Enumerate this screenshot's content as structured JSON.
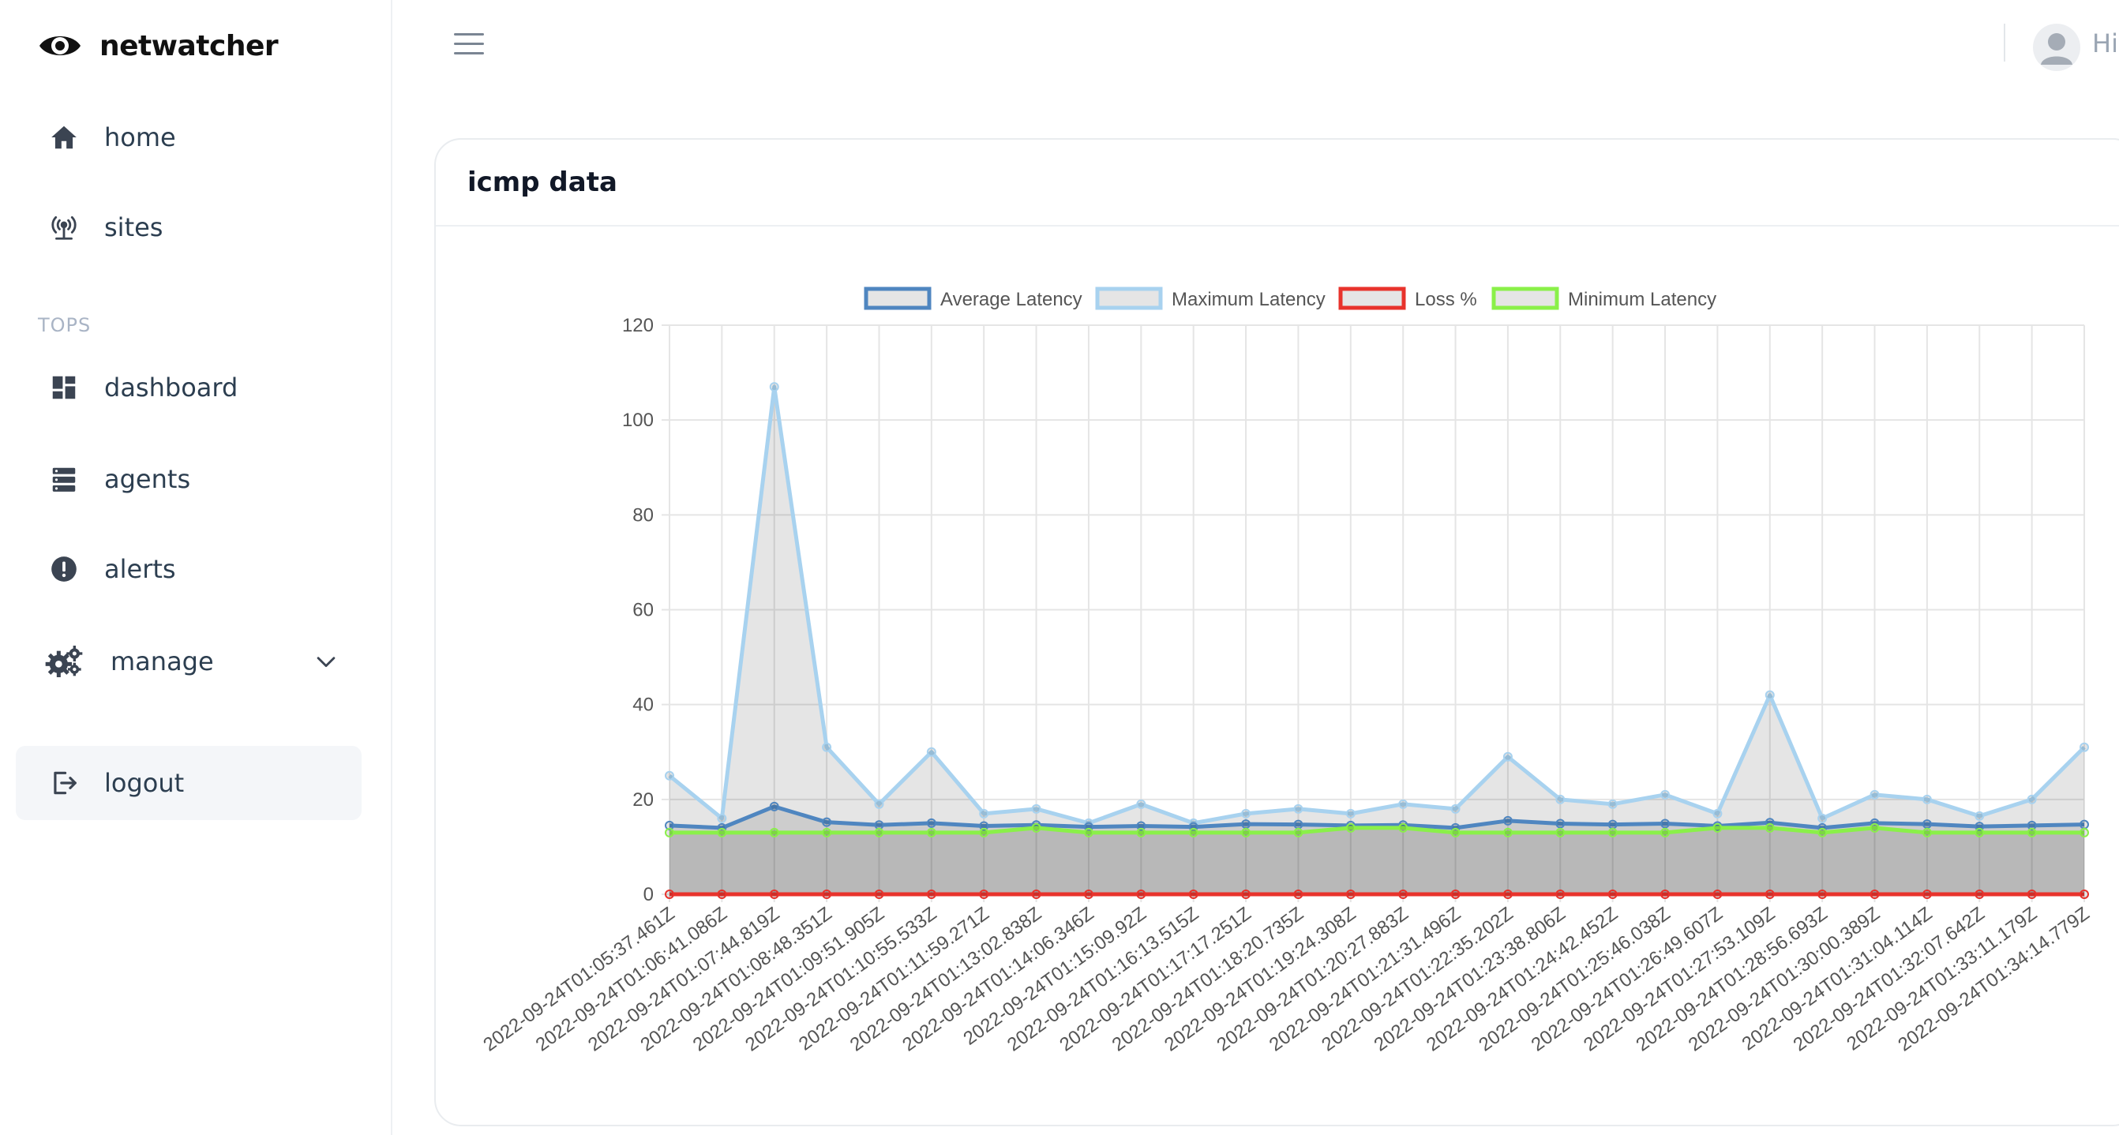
{
  "app": {
    "name": "netwatcher"
  },
  "sidebar": {
    "items": [
      {
        "label": "home",
        "icon": "home-icon"
      },
      {
        "label": "sites",
        "icon": "antenna-icon"
      }
    ],
    "section_label": "TOPS",
    "tops_items": [
      {
        "label": "dashboard",
        "icon": "dashboard-icon"
      },
      {
        "label": "agents",
        "icon": "server-icon"
      },
      {
        "label": "alerts",
        "icon": "alert-circle-icon"
      },
      {
        "label": "manage",
        "icon": "gears-icon"
      }
    ],
    "logout_label": "logout"
  },
  "header": {
    "greeting": "Hi,"
  },
  "card": {
    "title": "icmp data"
  },
  "colors": {
    "average": "#4f86c0",
    "maximum": "#a8d2ef",
    "loss": "#e8332c",
    "minimum": "#8af049",
    "grid": "#e5e5e5",
    "fill": "rgba(0,0,0,0.1)"
  },
  "chart_data": {
    "type": "line",
    "title": "",
    "xlabel": "",
    "ylabel": "",
    "ylim": [
      0,
      120
    ],
    "yticks": [
      0,
      20,
      40,
      60,
      80,
      100,
      120
    ],
    "grid": true,
    "legend_position": "top",
    "categories": [
      "2022-09-24T01:05:37.461Z",
      "2022-09-24T01:06:41.086Z",
      "2022-09-24T01:07:44.819Z",
      "2022-09-24T01:08:48.351Z",
      "2022-09-24T01:09:51.905Z",
      "2022-09-24T01:10:55.533Z",
      "2022-09-24T01:11:59.271Z",
      "2022-09-24T01:13:02.838Z",
      "2022-09-24T01:14:06.346Z",
      "2022-09-24T01:15:09.92Z",
      "2022-09-24T01:16:13.515Z",
      "2022-09-24T01:17:17.251Z",
      "2022-09-24T01:18:20.735Z",
      "2022-09-24T01:19:24.308Z",
      "2022-09-24T01:20:27.883Z",
      "2022-09-24T01:21:31.496Z",
      "2022-09-24T01:22:35.202Z",
      "2022-09-24T01:23:38.806Z",
      "2022-09-24T01:24:42.452Z",
      "2022-09-24T01:25:46.038Z",
      "2022-09-24T01:26:49.607Z",
      "2022-09-24T01:27:53.109Z",
      "2022-09-24T01:28:56.693Z",
      "2022-09-24T01:30:00.389Z",
      "2022-09-24T01:31:04.114Z",
      "2022-09-24T01:32:07.642Z",
      "2022-09-24T01:33:11.179Z",
      "2022-09-24T01:34:14.779Z"
    ],
    "series": [
      {
        "name": "Average Latency",
        "color_key": "average",
        "values": [
          14.5,
          14,
          18.5,
          15.2,
          14.6,
          15,
          14.4,
          14.6,
          14.2,
          14.4,
          14.2,
          14.8,
          14.7,
          14.5,
          14.6,
          14,
          15.5,
          14.9,
          14.7,
          14.9,
          14.4,
          15.1,
          14,
          15,
          14.8,
          14.3,
          14.5,
          14.7
        ]
      },
      {
        "name": "Maximum Latency",
        "color_key": "maximum",
        "values": [
          25,
          16,
          107,
          31,
          19,
          30,
          17,
          18,
          15,
          19,
          15,
          17,
          18,
          17,
          19,
          18,
          29,
          20,
          19,
          21,
          17,
          42,
          16,
          21,
          20,
          16.5,
          20,
          31
        ]
      },
      {
        "name": "Loss %",
        "color_key": "loss",
        "values": [
          0,
          0,
          0,
          0,
          0,
          0,
          0,
          0,
          0,
          0,
          0,
          0,
          0,
          0,
          0,
          0,
          0,
          0,
          0,
          0,
          0,
          0,
          0,
          0,
          0,
          0,
          0,
          0
        ]
      },
      {
        "name": "Minimum Latency",
        "color_key": "minimum",
        "values": [
          13,
          13,
          13,
          13,
          13,
          13,
          13,
          14,
          13,
          13,
          13,
          13,
          13,
          14,
          14,
          13,
          13,
          13,
          13,
          13,
          14,
          14,
          13,
          14,
          13,
          13,
          13,
          13
        ]
      }
    ]
  }
}
